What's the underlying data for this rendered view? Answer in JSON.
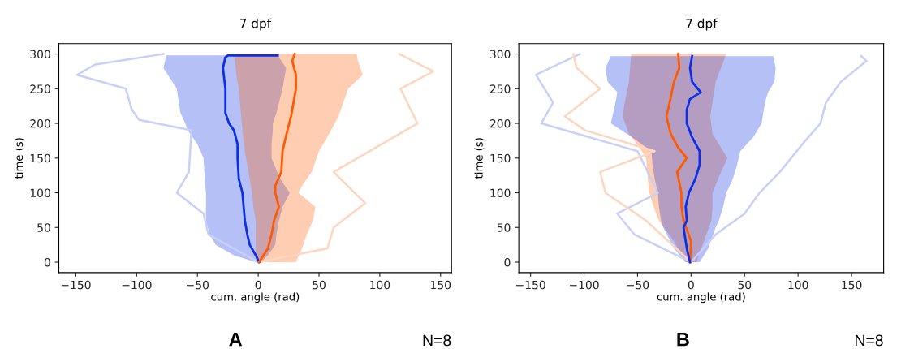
{
  "chart_data": [
    {
      "type": "line",
      "orientation": "horizontal",
      "title": "7 dpf",
      "xlabel": "cum. angle (rad)",
      "ylabel": "time (s)",
      "xlim": [
        -164,
        159
      ],
      "ylim": [
        -15,
        315
      ],
      "xticks": [
        {
          "value": -150,
          "label": "−150"
        },
        {
          "value": -100,
          "label": "−100"
        },
        {
          "value": -50,
          "label": "−50"
        },
        0,
        50,
        100,
        150
      ],
      "yticks": [
        0,
        50,
        100,
        150,
        200,
        250,
        300
      ],
      "grid": false,
      "legend": false,
      "marker": "none",
      "line_style": "solid",
      "annotations": [
        "A",
        "N=8"
      ],
      "series": [
        {
          "color": "#c8d0fa",
          "values": [
            0,
            -41,
            -45,
            -67,
            -57,
            -55,
            -98,
            -104,
            -109,
            -149,
            -134,
            -78
          ],
          "x": [
            0,
            40,
            70,
            100,
            130,
            190,
            205,
            220,
            250,
            270,
            285,
            300
          ]
        },
        {
          "color": "#fdd6bf",
          "values": [
            0,
            57,
            62,
            88,
            62,
            131,
            117,
            144,
            116
          ],
          "x": [
            0,
            20,
            50,
            85,
            130,
            200,
            250,
            275,
            300
          ]
        },
        {
          "color": "#0a2fe6",
          "values": [
            0.7,
            -2,
            -7,
            -9,
            -11,
            -12,
            -13,
            -16,
            -17,
            -17,
            -20,
            -24,
            -27,
            -27,
            -29,
            -27,
            -25,
            16
          ],
          "x": [
            0,
            10,
            25,
            40,
            60,
            80,
            100,
            120,
            150,
            170,
            190,
            200,
            215,
            250,
            280,
            295,
            298,
            298
          ],
          "lower": [
            -2,
            -20,
            -35,
            -40,
            -43,
            -43,
            -43,
            -44,
            -45,
            -50,
            -58,
            -60,
            -64,
            -67,
            -78,
            -76,
            -76,
            -76
          ],
          "upper": [
            2,
            8,
            14,
            15,
            17,
            20,
            26,
            18,
            11,
            11,
            12,
            12,
            15,
            20,
            23,
            17,
            17,
            17
          ]
        },
        {
          "color": "#ff5a00",
          "values": [
            0.7,
            8,
            11,
            13,
            17,
            14,
            14,
            19,
            20,
            24,
            27,
            31,
            31,
            28,
            30
          ],
          "x": [
            0,
            20,
            40,
            60,
            80,
            100,
            110,
            130,
            160,
            190,
            210,
            250,
            270,
            290,
            300
          ],
          "lower": [
            -2,
            -2,
            -2,
            -2,
            -4,
            -5,
            -6,
            -8,
            -11,
            -13,
            -14,
            -16,
            -18,
            -19,
            -19
          ],
          "upper": [
            31,
            36,
            40,
            45,
            47,
            33,
            36,
            44,
            50,
            60,
            66,
            74,
            86,
            82,
            81
          ]
        }
      ]
    },
    {
      "type": "line",
      "orientation": "horizontal",
      "title": "7 dpf",
      "xlabel": "cum. angle (rad)",
      "ylabel": "time (s)",
      "xlim": [
        -161,
        180
      ],
      "ylim": [
        -15,
        315
      ],
      "xticks": [
        {
          "value": -150,
          "label": "−150"
        },
        {
          "value": -100,
          "label": "−100"
        },
        {
          "value": -50,
          "label": "−50"
        },
        0,
        50,
        100,
        150
      ],
      "yticks": [
        0,
        50,
        100,
        150,
        200,
        250,
        300
      ],
      "grid": false,
      "legend": false,
      "marker": "none",
      "line_style": "solid",
      "annotations": [
        "B",
        "N=8"
      ],
      "series": [
        {
          "color": "#c8d0fa",
          "values": [
            0,
            23,
            50,
            64,
            83,
            104,
            121,
            126,
            140,
            164,
            159
          ],
          "x": [
            0,
            40,
            70,
            100,
            130,
            170,
            200,
            230,
            260,
            290,
            297
          ]
        },
        {
          "color": "#c8d0fa",
          "values": [
            0,
            -53,
            -69,
            -31,
            -50,
            -140,
            -129,
            -145,
            -104
          ],
          "x": [
            0,
            40,
            70,
            100,
            160,
            200,
            230,
            270,
            300
          ]
        },
        {
          "color": "#fdd6bf",
          "values": [
            0,
            -42,
            -80,
            -85,
            -34,
            -99,
            -118,
            -85,
            -107,
            -110
          ],
          "x": [
            0,
            60,
            100,
            130,
            160,
            190,
            210,
            250,
            280,
            300
          ]
        },
        {
          "color": "#ff5a00",
          "values": [
            -1,
            0,
            -7,
            -9,
            -9,
            -13,
            -4,
            -12,
            -19,
            -23,
            -20,
            -16,
            -11,
            -12
          ],
          "x": [
            0,
            30,
            60,
            80,
            100,
            130,
            150,
            165,
            185,
            210,
            230,
            260,
            280,
            300
          ],
          "lower": [
            -5,
            -16,
            -30,
            -35,
            -39,
            -41,
            -42,
            -48,
            -58,
            -64,
            -62,
            -58,
            -57,
            -56
          ],
          "upper": [
            5,
            12,
            19,
            20,
            20,
            28,
            34,
            28,
            20,
            18,
            20,
            23,
            28,
            33
          ]
        },
        {
          "color": "#0a2fe6",
          "values": [
            -1,
            -4,
            -7,
            -4,
            -5,
            -2,
            4,
            8,
            8,
            1,
            -4,
            -4,
            -1,
            9,
            1,
            -1,
            1
          ],
          "x": [
            0,
            20,
            50,
            60,
            80,
            100,
            120,
            140,
            160,
            180,
            200,
            220,
            235,
            245,
            260,
            280,
            297
          ],
          "lower": [
            -5,
            -16,
            -26,
            -28,
            -30,
            -31,
            -34,
            -36,
            -37,
            -55,
            -75,
            -72,
            -70,
            -69,
            -78,
            -80,
            -75
          ],
          "upper": [
            8,
            16,
            23,
            26,
            30,
            33,
            39,
            43,
            46,
            58,
            66,
            68,
            70,
            72,
            78,
            79,
            77
          ]
        }
      ]
    }
  ]
}
